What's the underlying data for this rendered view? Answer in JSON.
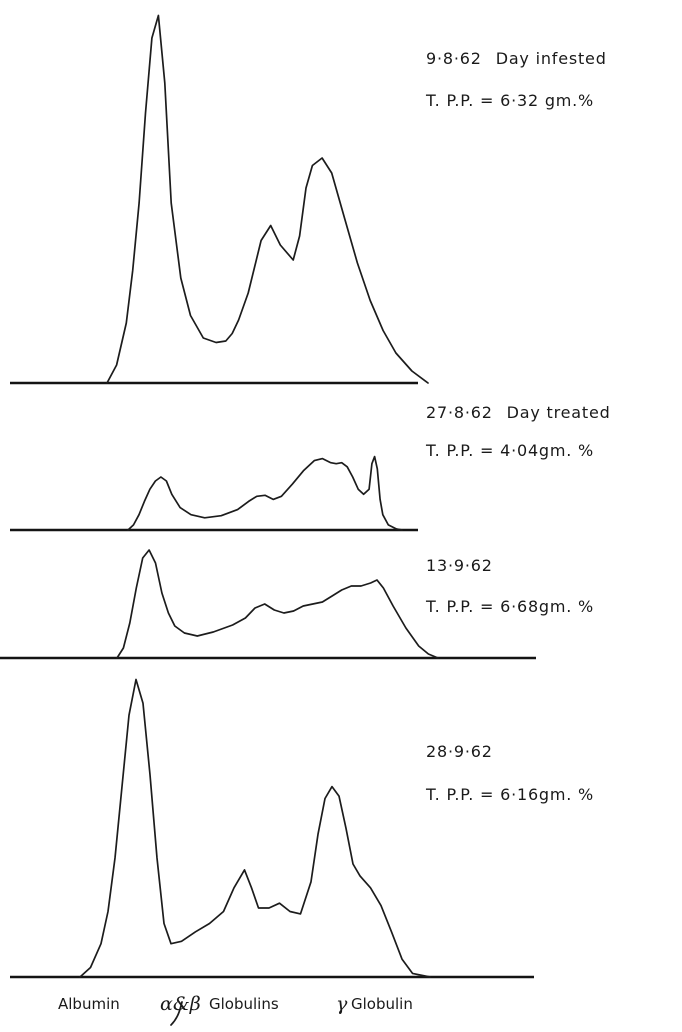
{
  "chart_data": {
    "type": "line",
    "x_unit": "electrophoretic migration position",
    "fractions": [
      {
        "greek": "",
        "text": "Albumin"
      },
      {
        "greek": "α&β",
        "text": "Globulins"
      },
      {
        "greek": "γ",
        "text": "Globulin"
      }
    ],
    "panels": [
      {
        "date_label": "9·8·62",
        "date_note": "Day infested",
        "tpp_label": "T. P.P. = 6·32 gm.%",
        "x": [
          0,
          3,
          6,
          8,
          10,
          12,
          14,
          16,
          18,
          20,
          23,
          26,
          30,
          34,
          37,
          39,
          41,
          44,
          48,
          51,
          54,
          58,
          60,
          62,
          64,
          67,
          70,
          74,
          78,
          82,
          86,
          90,
          95,
          100
        ],
        "y": [
          0,
          12,
          40,
          75,
          120,
          180,
          230,
          245,
          200,
          120,
          70,
          45,
          30,
          27,
          28,
          33,
          42,
          60,
          95,
          105,
          92,
          82,
          98,
          130,
          145,
          150,
          140,
          110,
          80,
          55,
          35,
          20,
          8,
          0
        ]
      },
      {
        "date_label": "27·8·62",
        "date_note": "Day treated",
        "tpp_label": "T. P.P. = 4·04gm. %",
        "x": [
          0,
          2,
          4,
          6,
          8,
          10,
          12,
          14,
          16,
          19,
          23,
          28,
          34,
          40,
          44,
          47,
          50,
          53,
          56,
          60,
          64,
          68,
          71,
          74,
          76,
          78,
          80,
          82,
          84,
          86,
          88,
          89,
          90,
          91,
          92,
          93,
          95,
          98,
          100
        ],
        "y": [
          0,
          5,
          15,
          28,
          40,
          48,
          52,
          48,
          35,
          22,
          15,
          12,
          14,
          20,
          28,
          33,
          34,
          30,
          33,
          45,
          58,
          68,
          70,
          66,
          65,
          66,
          62,
          52,
          40,
          35,
          40,
          65,
          72,
          60,
          30,
          15,
          5,
          1,
          0
        ]
      },
      {
        "date_label": "13·9·62",
        "date_note": "",
        "tpp_label": "T. P.P. = 6·68gm. %",
        "x": [
          0,
          2,
          4,
          6,
          8,
          10,
          12,
          14,
          16,
          18,
          21,
          25,
          30,
          36,
          40,
          43,
          46,
          49,
          52,
          55,
          58,
          61,
          64,
          67,
          70,
          73,
          76,
          79,
          81,
          83,
          86,
          90,
          94,
          97,
          100
        ],
        "y": [
          0,
          10,
          35,
          70,
          100,
          108,
          95,
          65,
          45,
          32,
          25,
          22,
          26,
          33,
          40,
          50,
          54,
          48,
          45,
          47,
          52,
          54,
          56,
          62,
          68,
          72,
          72,
          75,
          78,
          70,
          52,
          30,
          12,
          4,
          0
        ]
      },
      {
        "date_label": "28·9·62",
        "date_note": "",
        "tpp_label": "T. P.P. = 6·16gm. %",
        "x": [
          0,
          3,
          6,
          8,
          10,
          12,
          14,
          16,
          18,
          20,
          22,
          24,
          26,
          29,
          33,
          37,
          41,
          44,
          47,
          49,
          51,
          54,
          57,
          60,
          63,
          66,
          68,
          70,
          72,
          74,
          76,
          78,
          80,
          83,
          86,
          89,
          92,
          95,
          100
        ],
        "y": [
          0,
          8,
          28,
          55,
          100,
          160,
          220,
          250,
          230,
          170,
          100,
          45,
          28,
          30,
          38,
          45,
          55,
          75,
          90,
          75,
          58,
          58,
          62,
          55,
          53,
          80,
          120,
          150,
          160,
          152,
          125,
          95,
          85,
          75,
          60,
          38,
          15,
          3,
          0
        ]
      }
    ]
  }
}
